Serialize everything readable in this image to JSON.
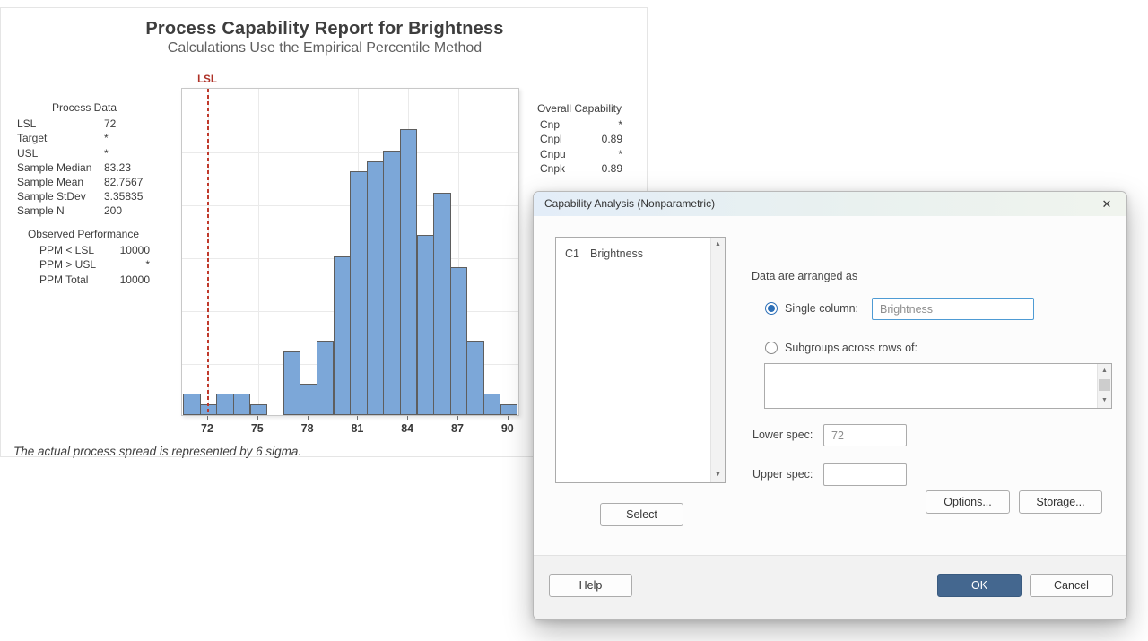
{
  "report": {
    "title": "Process Capability Report for Brightness",
    "subtitle": "Calculations Use the Empirical Percentile Method",
    "process_data": {
      "header": "Process Data",
      "rows": [
        [
          "LSL",
          "72"
        ],
        [
          "Target",
          "*"
        ],
        [
          "USL",
          "*"
        ],
        [
          "Sample Median",
          "83.23"
        ],
        [
          "Sample Mean",
          "82.7567"
        ],
        [
          "Sample StDev",
          "3.35835"
        ],
        [
          "Sample N",
          "200"
        ]
      ]
    },
    "observed_performance": {
      "header": "Observed Performance",
      "rows": [
        [
          "PPM < LSL",
          "10000"
        ],
        [
          "PPM > USL",
          "*"
        ],
        [
          "PPM Total",
          "10000"
        ]
      ]
    },
    "overall_capability": {
      "header": "Overall Capability",
      "rows": [
        [
          "Cnp",
          "*"
        ],
        [
          "Cnpl",
          "0.89"
        ],
        [
          "Cnpu",
          "*"
        ],
        [
          "Cnpk",
          "0.89"
        ]
      ]
    }
  },
  "chart_data": {
    "type": "bar",
    "title": "Process Capability Report for Brightness",
    "subtitle": "Calculations Use the Empirical Percentile Method",
    "xlabel": "",
    "ylabel": "",
    "x_ticks": [
      72,
      75,
      78,
      81,
      84,
      87,
      90
    ],
    "bin_width": 1,
    "bin_centers": [
      71,
      72,
      73,
      74,
      75,
      76,
      77,
      78,
      79,
      80,
      81,
      82,
      83,
      84,
      85,
      86,
      87,
      88,
      89,
      90
    ],
    "frequencies": [
      2,
      1,
      2,
      2,
      1,
      0,
      6,
      3,
      7,
      15,
      23,
      24,
      25,
      27,
      17,
      21,
      14,
      7,
      2,
      1
    ],
    "ylim": [
      0,
      31
    ],
    "grid_step_counts": 5,
    "grid": "on",
    "legend": "none",
    "lsl_line": {
      "label": "LSL",
      "value": 72
    },
    "colors": {
      "bar_fill": "#7ca7d8",
      "bar_border": "#5e5e5e",
      "lsl": "#ae3127",
      "grid": "#eaeaea"
    },
    "note": "The actual process spread is represented by 6 sigma."
  },
  "dialog": {
    "title": "Capability Analysis (Nonparametric)",
    "icons": {
      "close": "✕",
      "scroll_up": "▲",
      "scroll_down": "▼"
    },
    "listbox": {
      "items": [
        {
          "col": "C1",
          "name": "Brightness"
        }
      ]
    },
    "labels": {
      "arranged": "Data are arranged as",
      "single_column": "Single column:",
      "subgroups": "Subgroups across rows of:",
      "lower_spec": "Lower spec:",
      "upper_spec": "Upper spec:"
    },
    "fields": {
      "single_column_value": "Brightness",
      "subgroups_value": "",
      "lower_spec_value": "72",
      "upper_spec_value": ""
    },
    "buttons": {
      "select": "Select",
      "options": "Options...",
      "storage": "Storage...",
      "help": "Help",
      "ok": "OK",
      "cancel": "Cancel"
    }
  }
}
